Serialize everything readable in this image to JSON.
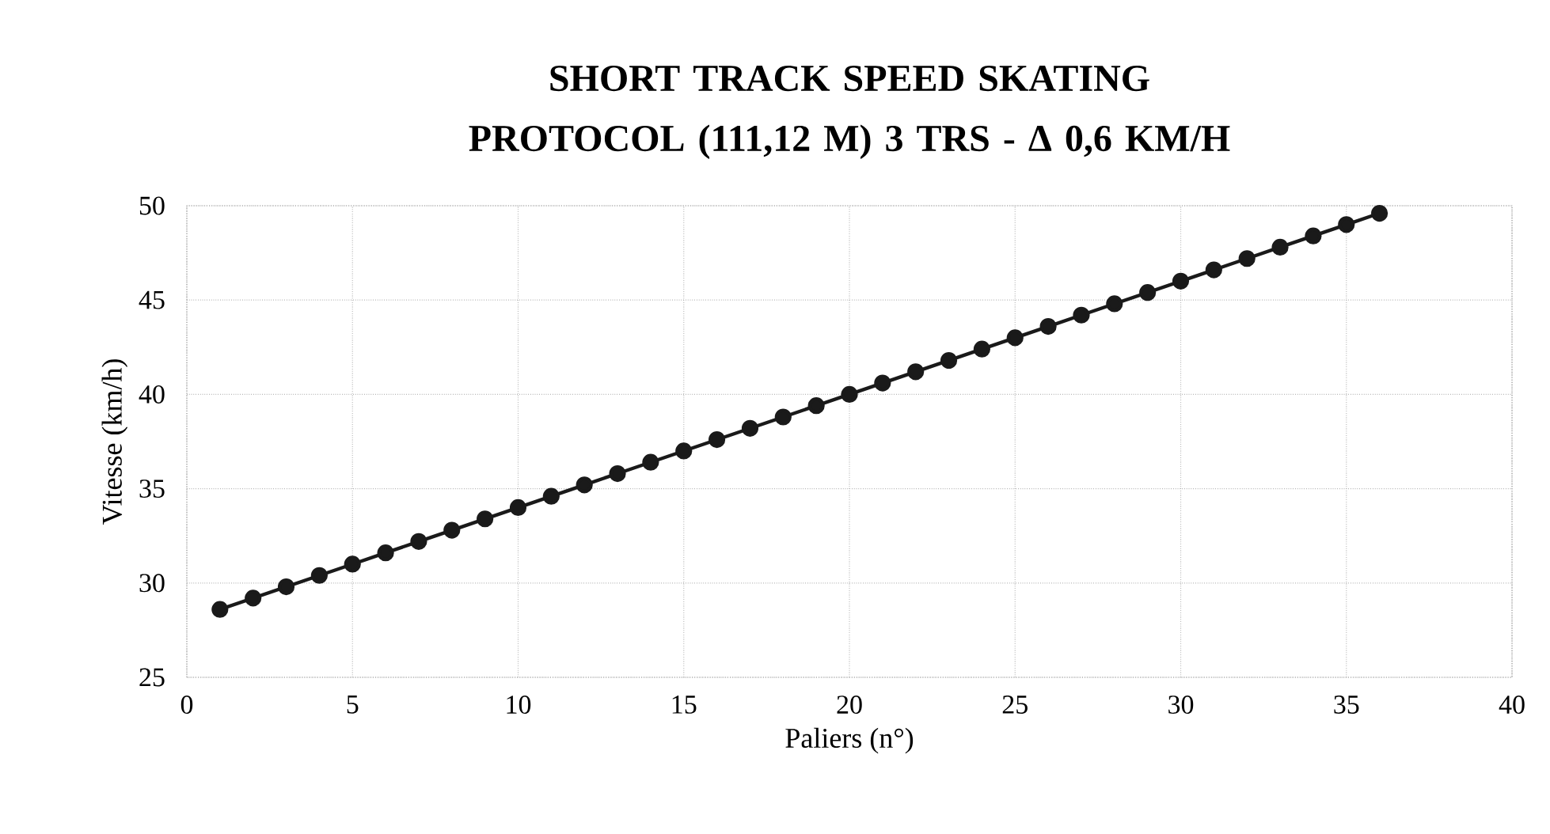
{
  "chart_data": {
    "type": "line",
    "title": "SHORT TRACK SPEED SKATING PROTOCOL (111,12 M) 3 TRS - Δ 0,6 KM/H",
    "xlabel": "Paliers (n°)",
    "ylabel": "Vitesse (km/h)",
    "x": [
      1,
      2,
      3,
      4,
      5,
      6,
      7,
      8,
      9,
      10,
      11,
      12,
      13,
      14,
      15,
      16,
      17,
      18,
      19,
      20,
      21,
      22,
      23,
      24,
      25,
      26,
      27,
      28,
      29,
      30,
      31,
      32,
      33,
      34,
      35,
      36
    ],
    "series": [
      {
        "color": "#1a1a1a",
        "values": [
          28.6,
          29.2,
          29.8,
          30.4,
          31.0,
          31.6,
          32.2,
          32.8,
          33.4,
          34.0,
          34.6,
          35.2,
          35.8,
          36.4,
          37.0,
          37.6,
          38.2,
          38.8,
          39.4,
          40.0,
          40.6,
          41.2,
          41.8,
          42.4,
          43.0,
          43.6,
          44.2,
          44.8,
          45.4,
          46.0,
          46.6,
          47.2,
          47.8,
          48.4,
          49.0,
          49.6
        ]
      }
    ],
    "xlim": [
      0,
      40
    ],
    "ylim": [
      25,
      50
    ],
    "xticks": [
      0,
      5,
      10,
      15,
      20,
      25,
      30,
      35,
      40
    ],
    "yticks": [
      25,
      30,
      35,
      40,
      45,
      50
    ],
    "grid": true,
    "marker": "circle",
    "line_style": "solid"
  }
}
